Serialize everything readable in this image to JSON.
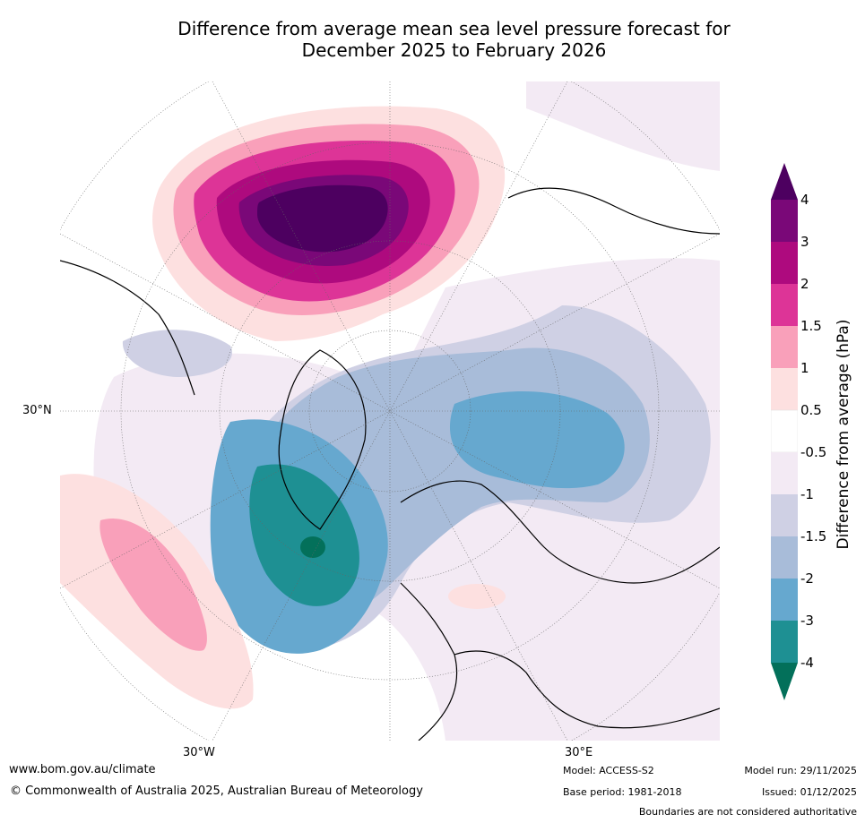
{
  "title": {
    "line1": "Difference from average mean sea level pressure forecast for",
    "line2": "December 2025 to February 2026"
  },
  "map": {
    "projection": "north polar stereographic",
    "region": "Northern Hemisphere (Atlantic / Europe / Arctic)",
    "axis_labels": {
      "left": "30°N",
      "bottom_left": "30°W",
      "bottom_right": "30°E"
    },
    "features": [
      {
        "name": "strong positive anomaly",
        "location": "north-east Pacific / Alaska / Bering",
        "peak_hpa": 4
      },
      {
        "name": "positive anomaly",
        "location": "subtropical North Atlantic (south-west of map)",
        "peak_hpa": 1.5
      },
      {
        "name": "negative anomaly",
        "location": "south of Greenland / North Atlantic",
        "min_hpa": -4
      },
      {
        "name": "negative anomaly",
        "location": "Arctic and northern Russia / Siberia",
        "min_hpa": -2
      },
      {
        "name": "weak positive anomaly",
        "location": "central Europe",
        "peak_hpa": 0.5
      }
    ]
  },
  "colorbar": {
    "label": "Difference from average (hPa)",
    "ticks": [
      "4",
      "3",
      "2",
      "1.5",
      "1",
      "0.5",
      "-0.5",
      "-1",
      "-1.5",
      "-2",
      "-3",
      "-4"
    ],
    "colors": {
      "ext_high": "#4d0060",
      "c_3_4": "#7a0878",
      "c_2_3": "#ae0a7e",
      "c_15_2": "#dd3497",
      "c_1_15": "#f9a0ba",
      "c_05_1": "#fde0e0",
      "c_n05_05": "#ffffff",
      "c_n1_n05": "#f3eaf4",
      "c_n15_n1": "#cfd0e4",
      "c_n2_n15": "#a8bcd9",
      "c_n3_n2": "#66a8cf",
      "c_n4_n3": "#1e9093",
      "ext_low": "#03705a"
    }
  },
  "footer": {
    "website": "www.bom.gov.au/climate",
    "copyright": "© Commonwealth of Australia 2025, Australian Bureau of Meteorology",
    "model": "Model: ACCESS-S2",
    "base_period": "Base period: 1981-2018",
    "model_run": "Model run: 29/11/2025",
    "issued": "Issued: 01/12/2025",
    "disclaimer": "Boundaries are not considered authoritative"
  }
}
